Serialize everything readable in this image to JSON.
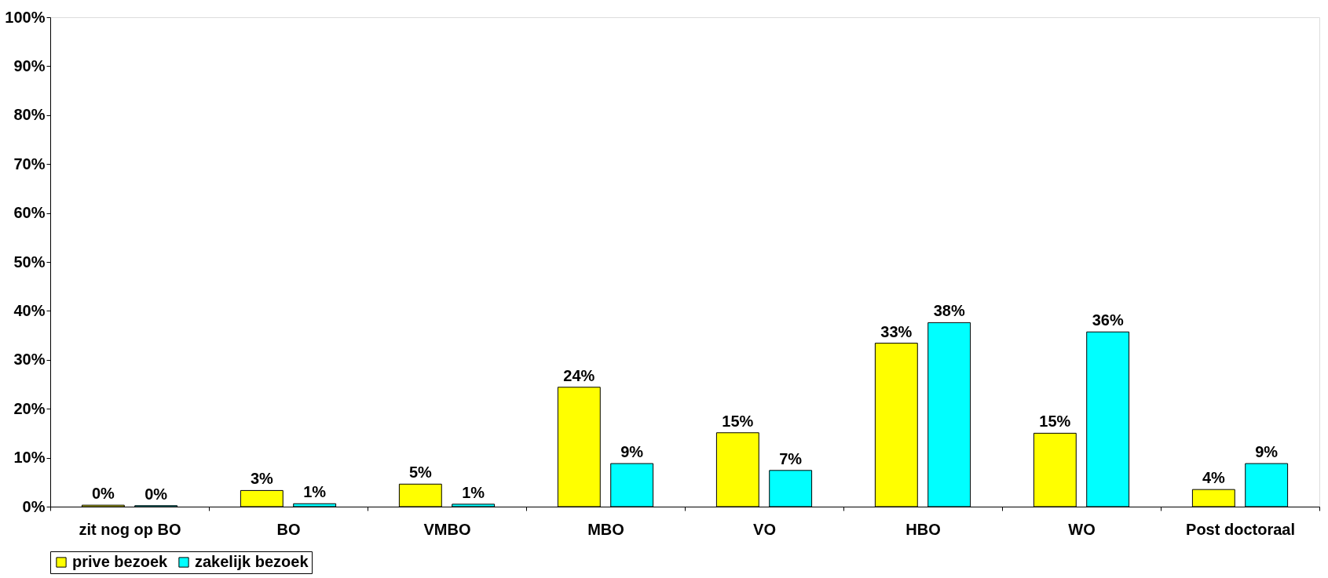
{
  "chart_data": {
    "type": "bar",
    "categories": [
      "zit nog op BO",
      "BO",
      "VMBO",
      "MBO",
      "VO",
      "HBO",
      "WO",
      "Post doctoraal"
    ],
    "series": [
      {
        "name": "prive bezoek",
        "color": "#ffff00",
        "values": [
          0.3,
          3.3,
          4.6,
          24.4,
          15.1,
          33.4,
          15.0,
          3.5
        ],
        "value_labels": [
          "0%",
          "3%",
          "5%",
          "24%",
          "15%",
          "33%",
          "15%",
          "4%"
        ]
      },
      {
        "name": "zakelijk bezoek",
        "color": "#00ffff",
        "values": [
          0.2,
          0.6,
          0.5,
          8.8,
          7.4,
          37.6,
          35.7,
          8.8
        ],
        "value_labels": [
          "0%",
          "1%",
          "1%",
          "9%",
          "7%",
          "38%",
          "36%",
          "9%"
        ]
      }
    ],
    "ylim": [
      0,
      100
    ],
    "yticks": [
      {
        "value": 0,
        "label": "0%"
      },
      {
        "value": 10,
        "label": "10%"
      },
      {
        "value": 20,
        "label": "20%"
      },
      {
        "value": 30,
        "label": "30%"
      },
      {
        "value": 40,
        "label": "40%"
      },
      {
        "value": 50,
        "label": "50%"
      },
      {
        "value": 60,
        "label": "60%"
      },
      {
        "value": 70,
        "label": "70%"
      },
      {
        "value": 80,
        "label": "80%"
      },
      {
        "value": 90,
        "label": "90%"
      },
      {
        "value": 100,
        "label": "100%"
      }
    ],
    "grid": false,
    "legend": "bottom"
  }
}
